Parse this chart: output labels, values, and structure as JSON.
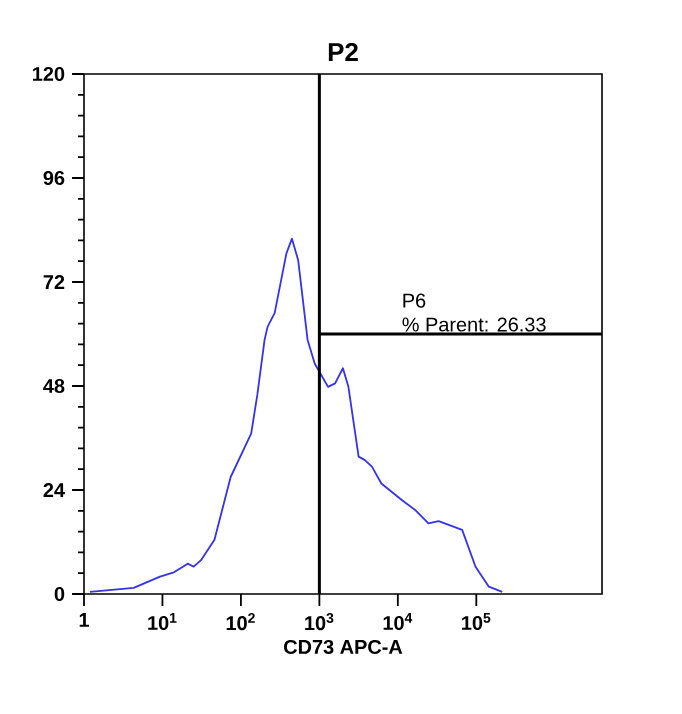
{
  "chart_data": {
    "type": "line",
    "title": "P2",
    "xlabel": "CD73 APC-A",
    "log": "x",
    "xlim": [
      1,
      4000000
    ],
    "ylim": [
      0,
      120
    ],
    "xticks": [
      1,
      {
        "value": 10,
        "label": "10$^{1}$"
      },
      {
        "value": 100,
        "label": "10$^{2}$"
      },
      {
        "value": 1000,
        "label": "10$^{3}$"
      },
      {
        "value": 10000,
        "label": "10$^{4}$"
      },
      {
        "value": 100000,
        "label": "10$^{5}$"
      }
    ],
    "yticks": [
      0,
      24,
      48,
      72,
      96,
      120
    ],
    "marker": "none",
    "line_style": "solid",
    "series": [
      {
        "color": "#3333ee",
        "x": [
          1.19,
          4.3,
          9.3,
          14,
          21,
          25,
          31,
          46,
          74,
          135,
          162,
          200,
          219,
          269,
          380,
          447,
          537,
          708,
          871,
          1290,
          1585,
          1995,
          2344,
          3162,
          3800,
          4677,
          6166,
          11220,
          16600,
          24550,
          33110,
          66070,
          97720,
          144500,
          213800
        ],
        "values": [
          0.5,
          1.4,
          4,
          5,
          7,
          6.3,
          7.8,
          12.5,
          27,
          37,
          46,
          58.6,
          61.7,
          64.8,
          78.6,
          82,
          77,
          58.6,
          53.2,
          47.8,
          48.6,
          52.1,
          47.8,
          31.7,
          30.9,
          29.4,
          25.5,
          21.7,
          19.4,
          16.3,
          16.8,
          14.8,
          6.3,
          1.7,
          0.5
        ]
      }
    ],
    "ref_lines": [
      {
        "axis": "x",
        "value": 1000,
        "color": "#000000"
      },
      {
        "axis": "y",
        "value": 60,
        "label": "P6",
        "color": "#000000"
      }
    ],
    "annotations": [
      "% Parent: 26.33"
    ]
  }
}
